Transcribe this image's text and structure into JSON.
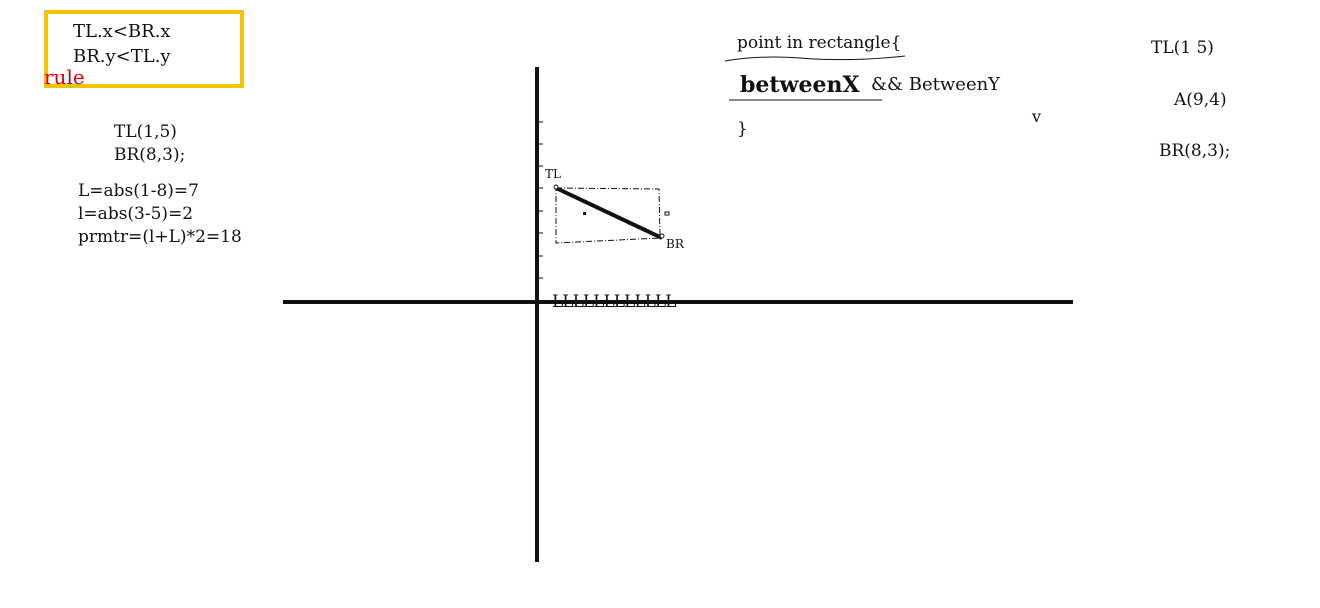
{
  "rule_box": {
    "line1": "TL.x<BR.x",
    "line2": "BR.y<TL.y",
    "label": "rule",
    "border_color": "#f5c400",
    "label_color": "#e00000"
  },
  "calc_notes": {
    "tl": "TL(1,5)",
    "br": "BR(8,3);",
    "length": "L=abs(1-8)=7",
    "width": "l=abs(3-5)=2",
    "perimeter": "prmtr=(l+L)*2=18"
  },
  "pseudo_code": {
    "header": "point in rectangle{",
    "between_x": "betweenX",
    "between_y": "&& BetweenY",
    "close": "}",
    "v_mark": "v"
  },
  "right_notes": {
    "tl": "TL(1 5)",
    "a": "A(9,4)",
    "br": "BR(8,3);"
  },
  "graph": {
    "tl_label": "TL",
    "br_label": "BR",
    "x_axis_scribble": "LLLLLLLLLLLL"
  }
}
